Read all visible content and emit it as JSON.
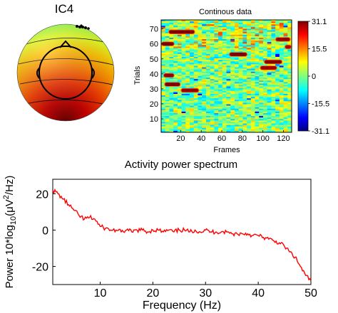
{
  "topo": {
    "title": "IC4"
  },
  "continuous": {
    "title": "Continous data",
    "xlabel": "Frames",
    "ylabel": "Trials",
    "xticks": [
      20,
      40,
      60,
      80,
      100,
      120
    ],
    "yticks": [
      10,
      20,
      30,
      40,
      50,
      60,
      70
    ],
    "xlim": [
      1,
      128
    ],
    "ylim": [
      1,
      76
    ],
    "colorbar_ticks": [
      "31.1",
      "15.5",
      "0",
      "-15.5",
      "-31.1"
    ],
    "colorbar_values": [
      31.1,
      15.5,
      0,
      -15.5,
      -31.1
    ],
    "clim": [
      -31.1,
      31.1
    ]
  },
  "chart_data": [
    {
      "type": "heatmap",
      "title": "Continous data",
      "xlabel": "Frames",
      "ylabel": "Trials",
      "xlim": [
        1,
        128
      ],
      "ylim": [
        1,
        76
      ],
      "clim": [
        -31.1,
        31.1
      ],
      "colorbar_ticks": [
        31.1,
        15.5,
        0,
        -15.5,
        -31.1
      ],
      "high_activity_segments": [
        {
          "trial": 68,
          "frame_start": 8,
          "frame_end": 34,
          "value": 31
        },
        {
          "trial": 60,
          "frame_start": 1,
          "frame_end": 14,
          "value": 31
        },
        {
          "trial": 53,
          "frame_start": 67,
          "frame_end": 85,
          "value": 31
        },
        {
          "trial": 63,
          "frame_start": 112,
          "frame_end": 127,
          "value": 30
        },
        {
          "trial": 58,
          "frame_start": 121,
          "frame_end": 128,
          "value": 28
        },
        {
          "trial": 48,
          "frame_start": 101,
          "frame_end": 119,
          "value": 31
        },
        {
          "trial": 44,
          "frame_start": 97,
          "frame_end": 114,
          "value": 29
        },
        {
          "trial": 39,
          "frame_start": 3,
          "frame_end": 14,
          "value": 30
        },
        {
          "trial": 33,
          "frame_start": 4,
          "frame_end": 20,
          "value": 31
        },
        {
          "trial": 29,
          "frame_start": 20,
          "frame_end": 38,
          "value": 30
        }
      ]
    },
    {
      "type": "line",
      "title": "Activity power spectrum",
      "xlabel": "Frequency (Hz)",
      "ylabel": "Power 10*log10(μV²/Hz)",
      "xlim": [
        1,
        50
      ],
      "ylim": [
        -30,
        28
      ],
      "xticks": [
        10,
        20,
        30,
        40,
        50
      ],
      "yticks": [
        20,
        0,
        -20
      ],
      "color": "#ff0000",
      "x": [
        1,
        2,
        3,
        4,
        5,
        6,
        7,
        8,
        9,
        10,
        11,
        12,
        13,
        14,
        15,
        16,
        17,
        18,
        19,
        20,
        21,
        22,
        23,
        24,
        25,
        26,
        27,
        28,
        29,
        30,
        31,
        32,
        33,
        34,
        35,
        36,
        37,
        38,
        39,
        40,
        41,
        42,
        43,
        44,
        45,
        46,
        47,
        48,
        49,
        50
      ],
      "y": [
        22,
        20,
        17,
        14,
        11,
        8,
        6,
        7,
        6,
        2,
        1,
        0,
        0,
        -1,
        0,
        -1,
        0,
        0,
        -1,
        0,
        0,
        -1,
        0,
        -1,
        0,
        0,
        -1,
        0,
        -1,
        0,
        -1,
        -1,
        -1,
        -1,
        -2,
        -2,
        -2,
        -2,
        -3,
        -3,
        -4,
        -5,
        -6,
        -7,
        -9,
        -12,
        -15,
        -20,
        -25,
        -28
      ]
    }
  ]
}
